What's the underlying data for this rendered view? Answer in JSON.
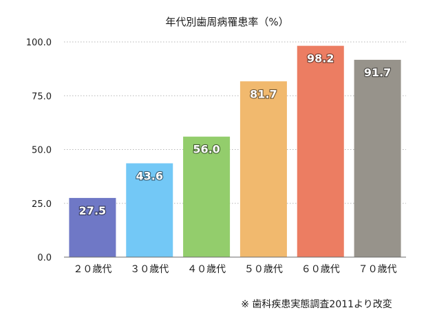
{
  "chart_data": {
    "type": "bar",
    "title": "年代別歯周病罹患率（%）",
    "categories": [
      "２０歳代",
      "３０歳代",
      "４０歳代",
      "５０歳代",
      "６０歳代",
      "７０歳代"
    ],
    "values": [
      27.5,
      43.6,
      56.0,
      81.7,
      98.2,
      91.7
    ],
    "value_labels": [
      "27.5",
      "43.6",
      "56.0",
      "81.7",
      "98.2",
      "91.7"
    ],
    "colors": [
      "#6f78c6",
      "#73c8f6",
      "#93cd6c",
      "#f1b96e",
      "#ec7d62",
      "#97938b"
    ],
    "ylim": [
      0,
      100
    ],
    "yticks": [
      0,
      25,
      50,
      75,
      100
    ],
    "ytick_labels": [
      "0.0",
      "25.0",
      "50.0",
      "75.0",
      "100.0"
    ],
    "grid": true,
    "xlabel": "",
    "ylabel": "",
    "legend": "none"
  },
  "source_note": "※ 歯科疾患実態調査2011より改変"
}
